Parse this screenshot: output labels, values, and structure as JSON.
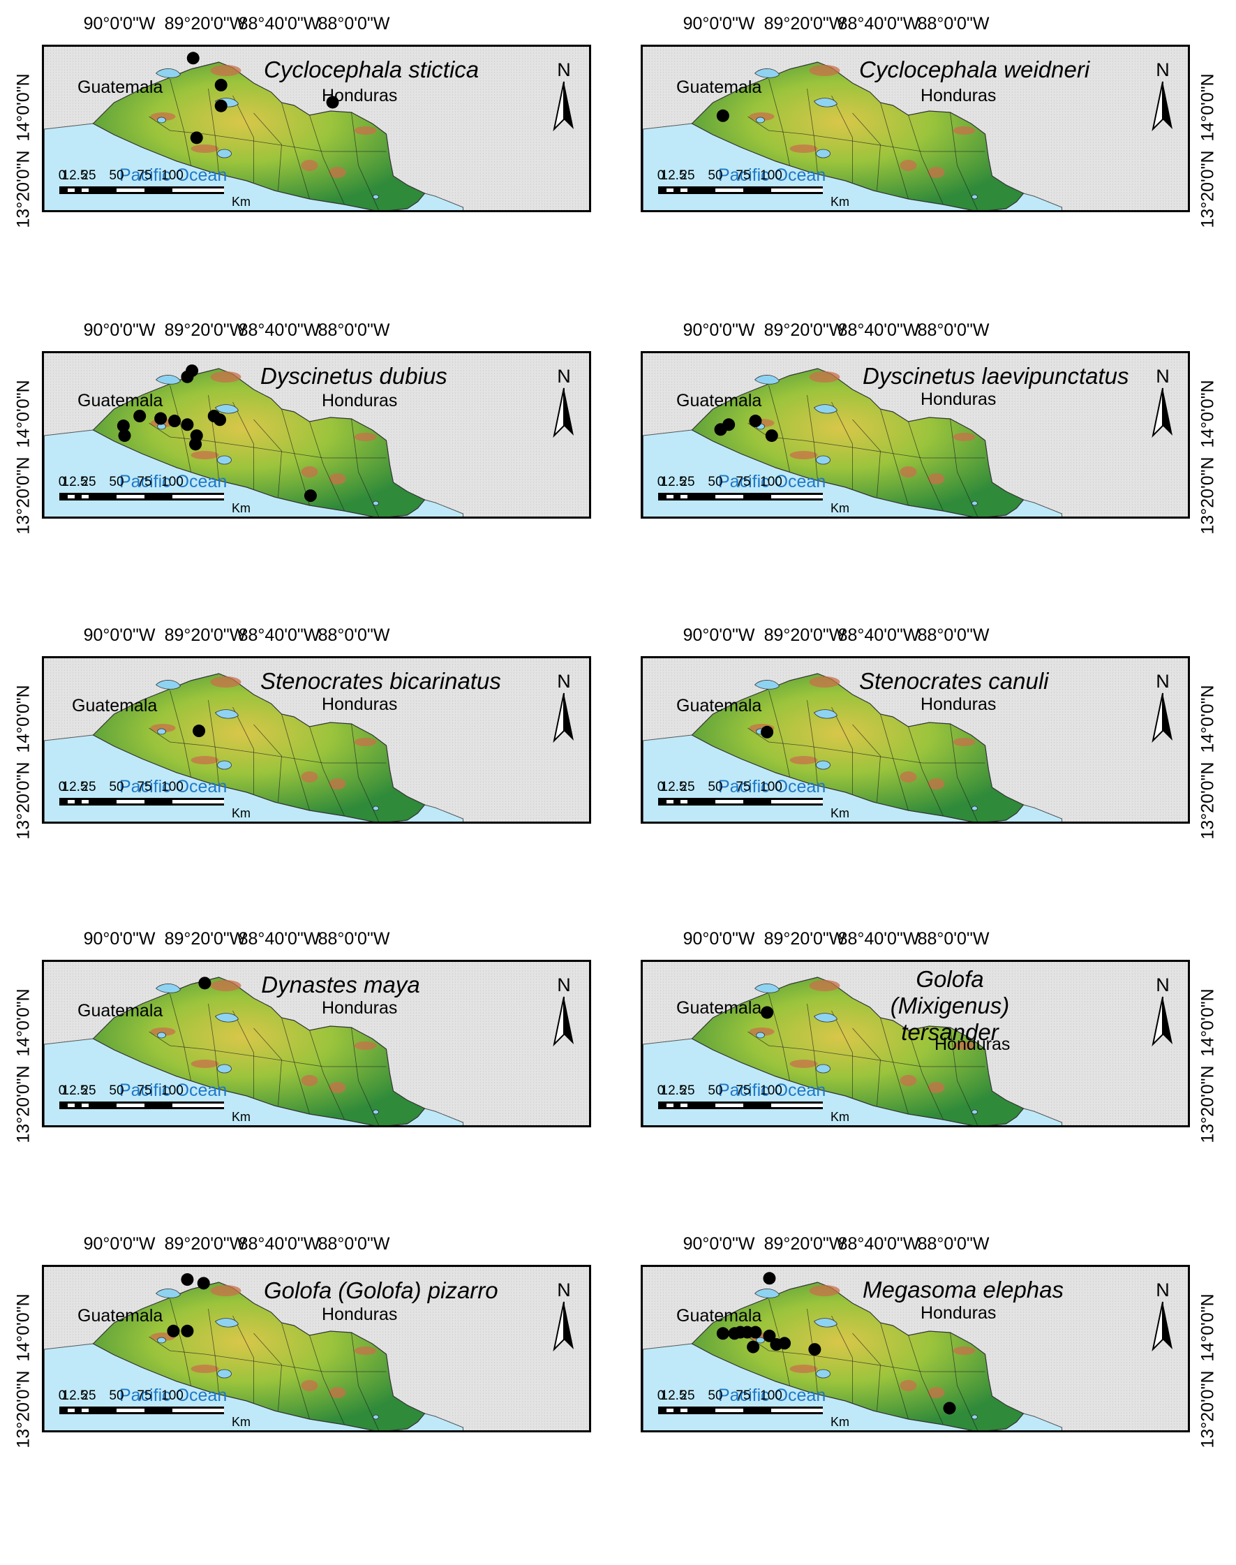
{
  "longitude_ticks": [
    "90°0'0\"W",
    "89°20'0\"W",
    "88°40'0\"W",
    "88°0'0\"W"
  ],
  "latitude_ticks": [
    "14°0'0\"N",
    "13°20'0\"N"
  ],
  "labels": {
    "guatemala": "Guatemala",
    "honduras": "Honduras",
    "pacific": "Pacific Ocean",
    "north": "N",
    "km": "Km",
    "scale_numbers": [
      "0",
      "12.5",
      "25",
      "50",
      "75",
      "100"
    ]
  },
  "colors": {
    "ocean": "#bfe9f8",
    "background": "#e3e3e3",
    "lowland": "#2f8a3a",
    "midland": "#9bc43c",
    "upland": "#d9c64a",
    "highland": "#c8704a",
    "lake": "#8fd3f2",
    "ocean_label": "#1f78c8"
  },
  "panels": [
    {
      "species": "Cyclocephala stictica",
      "records": [
        [
          89.38,
          14.42
        ],
        [
          89.14,
          14.2
        ],
        [
          89.14,
          14.03
        ],
        [
          88.18,
          14.06
        ],
        [
          89.35,
          13.77
        ]
      ]
    },
    {
      "species": "Cyclocephala weidneri",
      "records": [
        [
          89.98,
          13.95
        ]
      ]
    },
    {
      "species": "Dyscinetus dubius",
      "records": [
        [
          89.39,
          14.37
        ],
        [
          89.43,
          14.32
        ],
        [
          89.84,
          14.0
        ],
        [
          89.98,
          13.92
        ],
        [
          89.97,
          13.84
        ],
        [
          89.66,
          13.98
        ],
        [
          89.54,
          13.96
        ],
        [
          89.43,
          13.93
        ],
        [
          89.35,
          13.84
        ],
        [
          89.36,
          13.77
        ],
        [
          89.2,
          14.0
        ],
        [
          89.15,
          13.97
        ],
        [
          88.37,
          13.35
        ]
      ]
    },
    {
      "species": "Dyscinetus laevipunctatus",
      "records": [
        [
          90.0,
          13.89
        ],
        [
          89.93,
          13.93
        ],
        [
          89.7,
          13.96
        ],
        [
          89.56,
          13.84
        ]
      ]
    },
    {
      "species": "Stenocrates bicarinatus",
      "records": [
        [
          89.33,
          13.92
        ]
      ]
    },
    {
      "species": "Stenocrates canuli",
      "records": [
        [
          89.6,
          13.91
        ]
      ]
    },
    {
      "species": "Dynastes maya",
      "records": [
        [
          89.28,
          14.34
        ]
      ]
    },
    {
      "species": "Golofa (Mixigenus) tersander",
      "records": [
        [
          89.6,
          14.1
        ]
      ]
    },
    {
      "species": "Golofa (Golofa) pizarro",
      "records": [
        [
          89.43,
          14.41
        ],
        [
          89.29,
          14.38
        ],
        [
          89.55,
          13.99
        ],
        [
          89.43,
          13.99
        ]
      ]
    },
    {
      "species": "Megasoma elephas",
      "records": [
        [
          89.58,
          14.42
        ],
        [
          89.98,
          13.97
        ],
        [
          89.88,
          13.97
        ],
        [
          89.83,
          13.98
        ],
        [
          89.77,
          13.98
        ],
        [
          89.72,
          13.86
        ],
        [
          89.7,
          13.98
        ],
        [
          89.58,
          13.95
        ],
        [
          89.52,
          13.88
        ],
        [
          89.45,
          13.89
        ],
        [
          89.19,
          13.84
        ],
        [
          88.03,
          13.36
        ]
      ]
    }
  ]
}
